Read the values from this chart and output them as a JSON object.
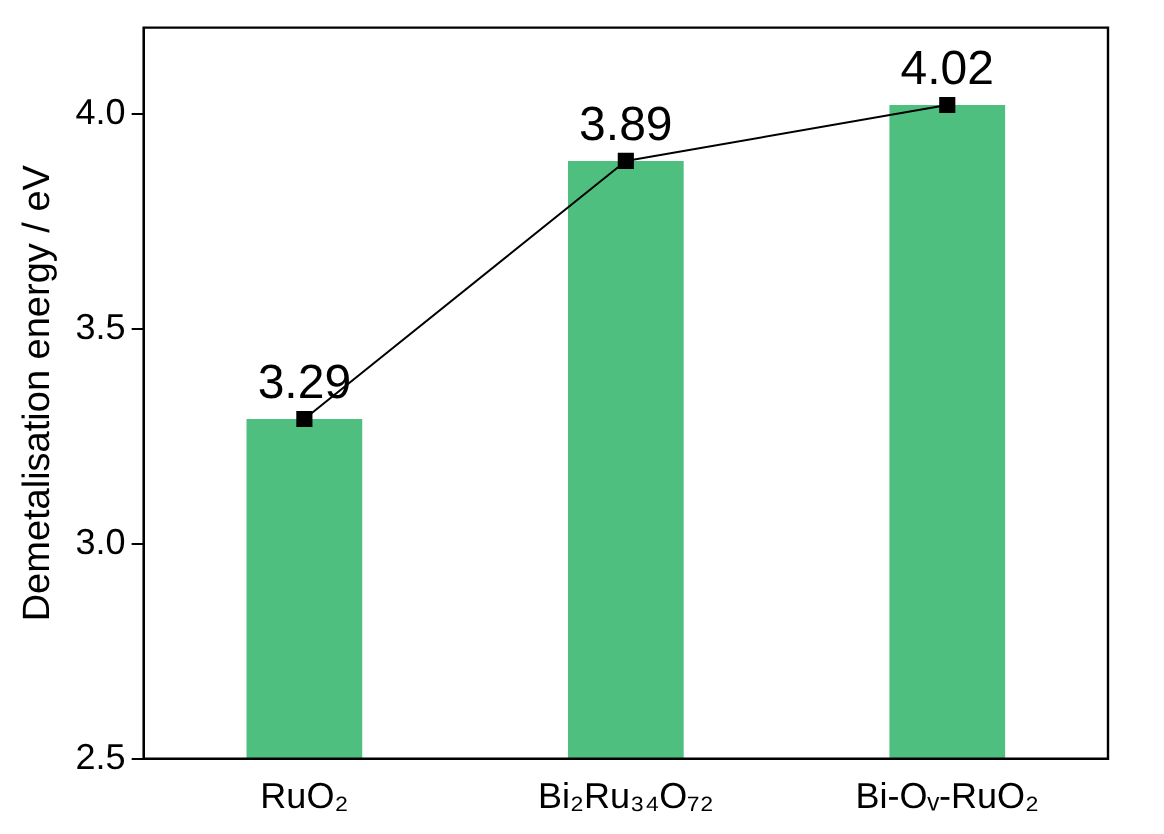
{
  "chart_data": {
    "type": "bar",
    "ylabel": "Demetalisation energy / eV",
    "categories": [
      "RuO₂",
      "Bi₂Ru₃₄O₇₂",
      "Bi-Oᵥ-RuO₂"
    ],
    "series": [
      {
        "color": "#4fbf7f",
        "values": [
          3.29,
          3.89,
          4.02
        ]
      },
      {
        "type": "line",
        "color": "#000000",
        "values": [
          3.29,
          3.89,
          4.02
        ],
        "value_labels": [
          "3.29",
          "3.89",
          "4.02"
        ],
        "marker": "square",
        "line_style": "solid"
      }
    ],
    "ylim": [
      2.5,
      4.2
    ],
    "yticks": [
      {
        "value": 2.5,
        "label": "2.5"
      },
      {
        "value": 3,
        "label": "3.0"
      },
      {
        "value": 3.5,
        "label": "3.5"
      },
      {
        "value": 4,
        "label": "4.0"
      }
    ],
    "legend": false,
    "grid": false
  }
}
